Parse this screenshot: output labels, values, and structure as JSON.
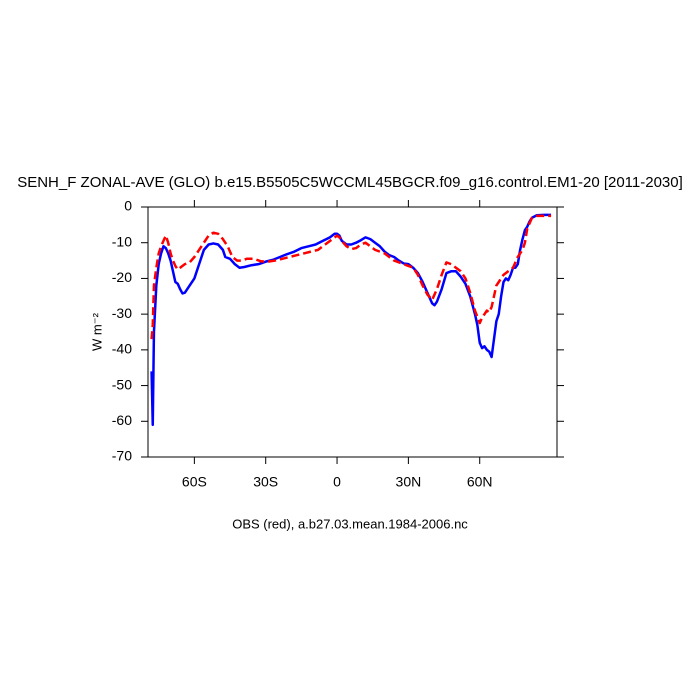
{
  "chart_data": {
    "type": "line",
    "title": "SENH_F ZONAL-AVE (GLO) b.e15.B5505C5WCCML45BGCR.f09_g16.control.EM1-20 [2011-2030]",
    "ylabel": "W m⁻²",
    "annotation": "OBS (red), a.b27.03.mean.1984-2006.nc",
    "xlim": [
      -79.5,
      92.5
    ],
    "ylim": [
      -70,
      0
    ],
    "xticks": [
      {
        "value": -60,
        "label": "60S"
      },
      {
        "value": -30,
        "label": "30S"
      },
      0,
      {
        "value": 30,
        "label": "30N"
      },
      {
        "value": 60,
        "label": "60N"
      }
    ],
    "yticks": [
      -70,
      -60,
      -50,
      -40,
      -30,
      -20,
      -10,
      0
    ],
    "series": [
      {
        "color": "#0000ff",
        "dash": false,
        "x": [
          -78,
          -77.5,
          -77,
          -76,
          -75,
          -74,
          -73,
          -72,
          -71,
          -70,
          -69,
          -68,
          -67,
          -66,
          -65,
          -64,
          -62,
          -60,
          -58,
          -56,
          -54,
          -52,
          -50,
          -48,
          -47,
          -45,
          -43,
          -41,
          -39,
          -36,
          -33,
          -30,
          -27,
          -24,
          -21,
          -18,
          -15,
          -12,
          -9,
          -6,
          -3,
          -1,
          0,
          1,
          2,
          4,
          6,
          8,
          10,
          12,
          14,
          16,
          18,
          20,
          22,
          24,
          26,
          28,
          30,
          32,
          34,
          36,
          38,
          40,
          41,
          42,
          44,
          46,
          48,
          50,
          52,
          54,
          56,
          58,
          59,
          60,
          61,
          62,
          63,
          64,
          65,
          66,
          67,
          68,
          69,
          70,
          71,
          72,
          73,
          74,
          75,
          76,
          77,
          78,
          79,
          80,
          81,
          82,
          84,
          87,
          90
        ],
        "values": [
          -46,
          -61,
          -35,
          -22,
          -16,
          -13,
          -11,
          -11.5,
          -13,
          -15,
          -18,
          -21,
          -21.5,
          -23,
          -24.2,
          -24,
          -22,
          -20,
          -16,
          -12,
          -10.5,
          -10.2,
          -10.5,
          -12,
          -14,
          -14.5,
          -16,
          -17,
          -16.8,
          -16.3,
          -16,
          -15.3,
          -14.8,
          -14,
          -13.2,
          -12.5,
          -11.5,
          -11,
          -10.5,
          -9.5,
          -8.5,
          -7.5,
          -7.5,
          -8,
          -9.5,
          -10.5,
          -10.5,
          -10,
          -9.3,
          -8.5,
          -9,
          -10,
          -11,
          -12.5,
          -13.5,
          -14,
          -15,
          -15.8,
          -16,
          -17,
          -18.5,
          -21,
          -24,
          -27,
          -27.5,
          -26.5,
          -23,
          -18.5,
          -18,
          -18,
          -19.5,
          -21.5,
          -25,
          -30,
          -33,
          -38,
          -39.5,
          -39,
          -40,
          -40.5,
          -42,
          -37,
          -32,
          -30,
          -25,
          -21,
          -20,
          -20.5,
          -19,
          -17,
          -17,
          -16,
          -12,
          -9,
          -6.5,
          -5.5,
          -4,
          -3,
          -2.3,
          -2.2,
          -2.2
        ]
      },
      {
        "color": "#ff0000",
        "dash": true,
        "x": [
          -78,
          -77.5,
          -77,
          -76,
          -75,
          -74,
          -73,
          -72,
          -71,
          -70,
          -69,
          -68,
          -67,
          -66,
          -64,
          -62,
          -60,
          -58,
          -56,
          -54,
          -52,
          -50,
          -48,
          -46,
          -44,
          -42,
          -40,
          -38,
          -35,
          -32,
          -29,
          -26,
          -23,
          -20,
          -17,
          -14,
          -11,
          -8,
          -6,
          -4,
          -2,
          0,
          1,
          2,
          4,
          6,
          8,
          10,
          12,
          14,
          16,
          18,
          20,
          22,
          24,
          26,
          28,
          30,
          32,
          34,
          36,
          38,
          40,
          42,
          44,
          46,
          48,
          50,
          52,
          54,
          56,
          58,
          60,
          61,
          62,
          63,
          64,
          65,
          66,
          67,
          68,
          70,
          72,
          74,
          76,
          78,
          79,
          80,
          81,
          82,
          84,
          90
        ],
        "values": [
          -37,
          -33,
          -22,
          -17,
          -13,
          -11,
          -9.5,
          -8,
          -10,
          -13,
          -15,
          -16.5,
          -17.5,
          -17,
          -16,
          -15.5,
          -14,
          -12,
          -10,
          -8,
          -7.2,
          -7.5,
          -9,
          -11,
          -14,
          -15,
          -15,
          -14.5,
          -14.5,
          -15.2,
          -15.3,
          -15,
          -14.5,
          -14,
          -13.5,
          -13,
          -12.5,
          -12,
          -11,
          -10,
          -9,
          -8,
          -8.5,
          -9.5,
          -11,
          -11.8,
          -11.5,
          -10.5,
          -10,
          -11,
          -12,
          -12.5,
          -13,
          -14,
          -15,
          -15.5,
          -16,
          -16.5,
          -17,
          -19,
          -22,
          -24.5,
          -26,
          -23,
          -19,
          -15.5,
          -16,
          -17,
          -18,
          -20,
          -24,
          -29,
          -32.5,
          -31,
          -30,
          -29,
          -29.5,
          -28,
          -25,
          -22,
          -21,
          -19,
          -18,
          -17,
          -14,
          -12,
          -10,
          -6,
          -4.5,
          -3,
          -2.5,
          -2.5
        ]
      }
    ]
  }
}
